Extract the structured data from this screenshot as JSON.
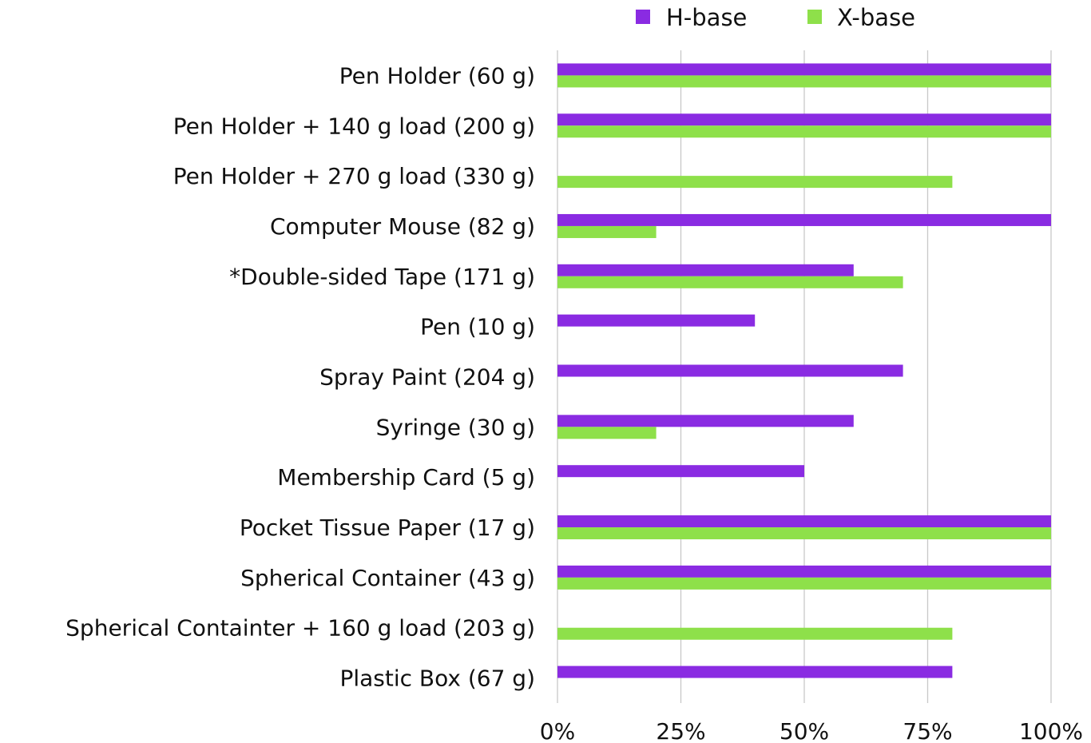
{
  "chart_data": {
    "type": "bar",
    "orientation": "horizontal",
    "categories": [
      "Pen Holder (60 g)",
      "Pen Holder + 140 g load (200 g)",
      "Pen Holder + 270 g load (330 g)",
      "Computer Mouse (82 g)",
      "*Double-sided Tape (171 g)",
      "Pen (10 g)",
      "Spray Paint (204 g)",
      "Syringe (30 g)",
      "Membership Card (5 g)",
      "Pocket Tissue Paper (17 g)",
      "Spherical Container (43 g)",
      "Spherical Containter + 160 g load (203 g)",
      "Plastic Box (67 g)"
    ],
    "series": [
      {
        "name": "H-base",
        "color": "#8a2be2",
        "values": [
          100,
          100,
          0,
          100,
          60,
          40,
          70,
          60,
          50,
          100,
          100,
          0,
          80
        ]
      },
      {
        "name": "X-base",
        "color": "#8ee04a",
        "values": [
          100,
          100,
          80,
          20,
          70,
          0,
          0,
          20,
          0,
          100,
          100,
          80,
          0
        ]
      }
    ],
    "x_ticks": [
      "0%",
      "25%",
      "50%",
      "75%",
      "100%"
    ],
    "xlim": [
      0,
      100
    ],
    "grid": true,
    "legend_position": "top"
  }
}
